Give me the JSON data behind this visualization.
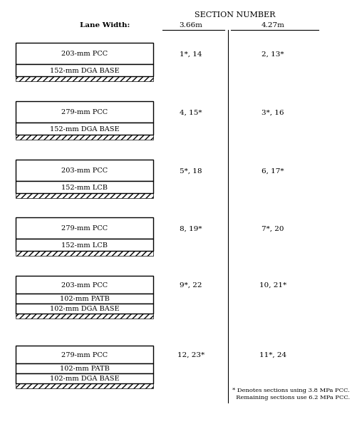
{
  "title": "SECTION NUMBER",
  "lane_width_label": "Lane Width:",
  "col1_label": "3.66m",
  "col2_label": "4.27m",
  "sections": [
    {
      "layers": [
        "203-mm PCC",
        "152-mm DGA BASE"
      ],
      "col1": "1*, 14",
      "col2": "2, 13*"
    },
    {
      "layers": [
        "279-mm PCC",
        "152-mm DGA BASE"
      ],
      "col1": "4, 15*",
      "col2": "3*, 16"
    },
    {
      "layers": [
        "203-mm PCC",
        "152-mm LCB"
      ],
      "col1": "5*, 18",
      "col2": "6, 17*"
    },
    {
      "layers": [
        "279-mm PCC",
        "152-mm LCB"
      ],
      "col1": "8, 19*",
      "col2": "7*, 20"
    },
    {
      "layers": [
        "203-mm PCC",
        "102-mm PATB",
        "102-mm DGA BASE"
      ],
      "col1": "9*, 22",
      "col2": "10, 21*"
    },
    {
      "layers": [
        "279-mm PCC",
        "102-mm PATB",
        "102-mm DGA BASE"
      ],
      "col1": "12, 23*",
      "col2": "11*, 24"
    }
  ],
  "footnote_line1": "* Denotes sections using 3.8 MPa PCC.",
  "footnote_line2": "  Remaining sections use 6.2 MPa PCC."
}
